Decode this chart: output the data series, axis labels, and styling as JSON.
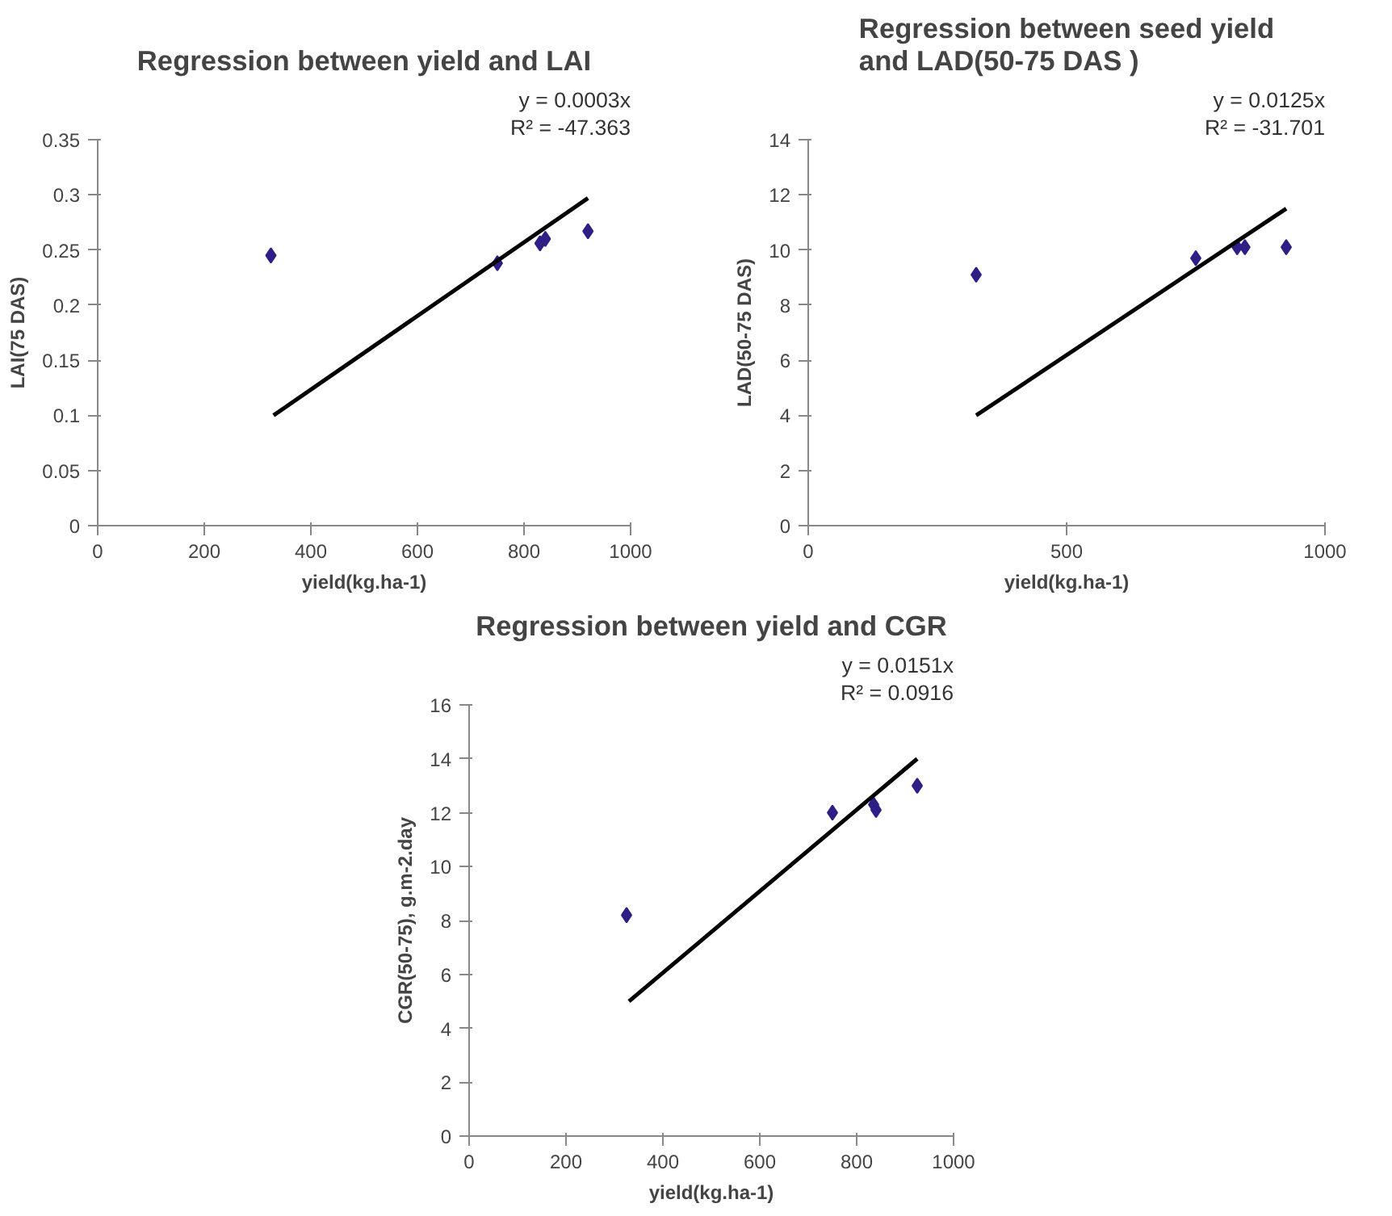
{
  "chart_data": [
    {
      "type": "scatter",
      "title": "Regression between yield and LAI",
      "xlabel": "yield(kg.ha-1)",
      "ylabel": "LAI(75 DAS)",
      "x": [
        325,
        750,
        830,
        840,
        920
      ],
      "series": [
        {
          "color": "#2e1f86",
          "marker": "diamond",
          "values": [
            0.245,
            0.238,
            0.256,
            0.26,
            0.267
          ]
        },
        {
          "type": "line",
          "color": "#000000",
          "x": [
            330,
            920
          ],
          "values": [
            0.1,
            0.297
          ]
        }
      ],
      "xlim": [
        0,
        1000
      ],
      "xticks": [
        0,
        200,
        400,
        600,
        800,
        1000
      ],
      "ylim": [
        0,
        0.35
      ],
      "yticks": [
        0,
        0.05,
        0.1,
        0.15,
        0.2,
        0.25,
        0.3,
        0.35
      ],
      "annotations": [
        "y = 0.0003x",
        "R² = -47.363"
      ],
      "grid": false
    },
    {
      "type": "scatter",
      "title": "Regression between seed yield\nand LAD(50-75 DAS )",
      "xlabel": "yield(kg.ha-1)",
      "ylabel": "LAD(50-75 DAS)",
      "x": [
        325,
        750,
        830,
        845,
        925
      ],
      "series": [
        {
          "color": "#2e1f86",
          "marker": "diamond",
          "values": [
            9.1,
            9.7,
            10.1,
            10.1,
            10.1
          ]
        },
        {
          "type": "line",
          "color": "#000000",
          "x": [
            325,
            925
          ],
          "values": [
            4.0,
            11.5
          ]
        }
      ],
      "xlim": [
        0,
        1000
      ],
      "xticks": [
        0,
        500,
        1000
      ],
      "ylim": [
        0,
        14
      ],
      "yticks": [
        0,
        2,
        4,
        6,
        8,
        10,
        12,
        14
      ],
      "annotations": [
        "y = 0.0125x",
        "R² = -31.701"
      ],
      "grid": false
    },
    {
      "type": "scatter",
      "title": "Regression between yield and CGR",
      "xlabel": "yield(kg.ha-1)",
      "ylabel": "CGR(50-75), g.m-2.day",
      "x": [
        325,
        750,
        835,
        840,
        925
      ],
      "series": [
        {
          "color": "#2e1f86",
          "marker": "diamond",
          "values": [
            8.2,
            12.0,
            12.3,
            12.1,
            13.0
          ]
        },
        {
          "type": "line",
          "color": "#000000",
          "x": [
            330,
            925
          ],
          "values": [
            5.0,
            14.0
          ]
        }
      ],
      "xlim": [
        0,
        1000
      ],
      "xticks": [
        0,
        200,
        400,
        600,
        800,
        1000
      ],
      "ylim": [
        0,
        16
      ],
      "yticks": [
        0,
        2,
        4,
        6,
        8,
        10,
        12,
        14,
        16
      ],
      "annotations": [
        "y = 0.0151x",
        "R² = 0.0916"
      ],
      "grid": false
    }
  ]
}
